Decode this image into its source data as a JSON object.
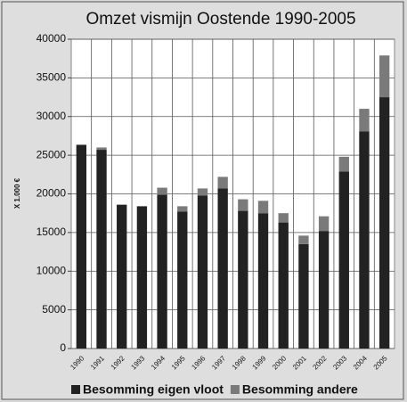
{
  "chart_data": {
    "type": "stacked_bar",
    "title": "Omzet vismijn Oostende 1990-2005",
    "y_label": "X 1.000 €",
    "categories": [
      "1990",
      "1991",
      "1992",
      "1993",
      "1994",
      "1995",
      "1996",
      "1997",
      "1998",
      "1999",
      "2000",
      "2001",
      "2002",
      "2003",
      "2004",
      "2005"
    ],
    "series": [
      {
        "name": "Besomming eigen vloot",
        "color": "#222222",
        "values": [
          26300,
          25700,
          18600,
          18400,
          19900,
          17700,
          19800,
          20700,
          17800,
          17500,
          16300,
          13500,
          15200,
          22900,
          28100,
          32500
        ]
      },
      {
        "name": "Besomming andere",
        "color": "#7a7a7a",
        "values": [
          100,
          300,
          0,
          0,
          900,
          700,
          900,
          1500,
          1500,
          1600,
          1200,
          1100,
          1900,
          1900,
          2900,
          5400
        ]
      }
    ],
    "ylim": [
      0,
      40000
    ],
    "yticks": [
      0,
      5000,
      10000,
      15000,
      20000,
      25000,
      30000,
      35000,
      40000
    ],
    "grid": true,
    "legend": "bottom"
  }
}
